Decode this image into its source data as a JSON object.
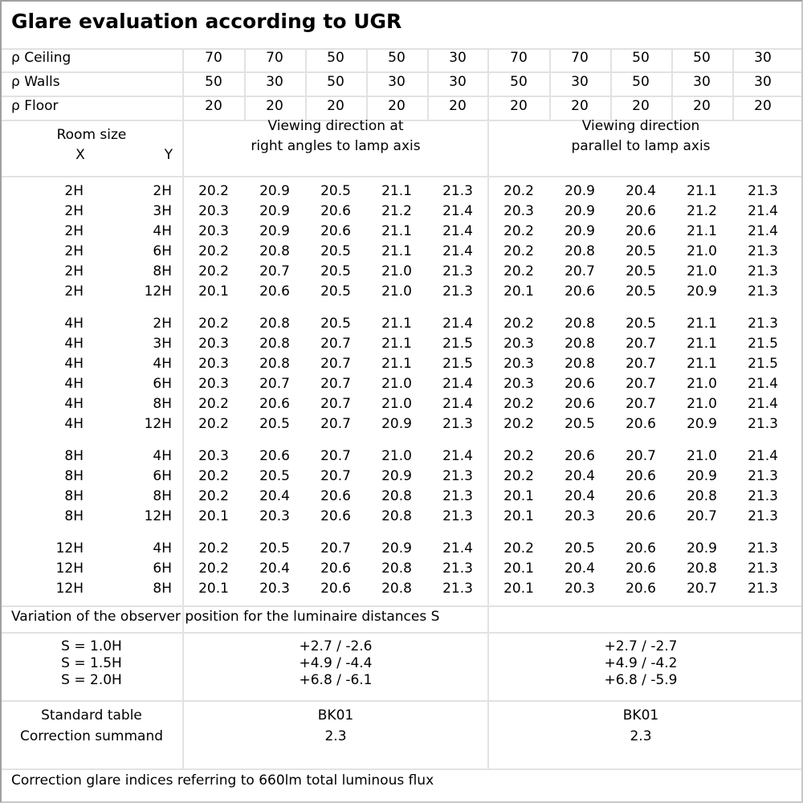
{
  "title": "Glare evaluation according to UGR",
  "reflectances": [
    {
      "label": "ρ Ceiling",
      "values": [
        "70",
        "70",
        "50",
        "50",
        "30",
        "70",
        "70",
        "50",
        "50",
        "30"
      ]
    },
    {
      "label": "ρ Walls",
      "values": [
        "50",
        "30",
        "50",
        "30",
        "30",
        "50",
        "30",
        "50",
        "30",
        "30"
      ]
    },
    {
      "label": "ρ Floor",
      "values": [
        "20",
        "20",
        "20",
        "20",
        "20",
        "20",
        "20",
        "20",
        "20",
        "20"
      ]
    }
  ],
  "header": {
    "room_size": "Room size",
    "x": "X",
    "y": "Y",
    "crosswise_1": "Viewing direction at",
    "crosswise_2": "right angles to lamp axis",
    "endwise_1": "Viewing direction",
    "endwise_2": "parallel to lamp axis"
  },
  "groups": [
    [
      {
        "x": "2H",
        "y": "2H",
        "v": [
          "20.2",
          "20.9",
          "20.5",
          "21.1",
          "21.3",
          "20.2",
          "20.9",
          "20.4",
          "21.1",
          "21.3"
        ]
      },
      {
        "x": "2H",
        "y": "3H",
        "v": [
          "20.3",
          "20.9",
          "20.6",
          "21.2",
          "21.4",
          "20.3",
          "20.9",
          "20.6",
          "21.2",
          "21.4"
        ]
      },
      {
        "x": "2H",
        "y": "4H",
        "v": [
          "20.3",
          "20.9",
          "20.6",
          "21.1",
          "21.4",
          "20.2",
          "20.9",
          "20.6",
          "21.1",
          "21.4"
        ]
      },
      {
        "x": "2H",
        "y": "6H",
        "v": [
          "20.2",
          "20.8",
          "20.5",
          "21.1",
          "21.4",
          "20.2",
          "20.8",
          "20.5",
          "21.0",
          "21.3"
        ]
      },
      {
        "x": "2H",
        "y": "8H",
        "v": [
          "20.2",
          "20.7",
          "20.5",
          "21.0",
          "21.3",
          "20.2",
          "20.7",
          "20.5",
          "21.0",
          "21.3"
        ]
      },
      {
        "x": "2H",
        "y": "12H",
        "v": [
          "20.1",
          "20.6",
          "20.5",
          "21.0",
          "21.3",
          "20.1",
          "20.6",
          "20.5",
          "20.9",
          "21.3"
        ]
      }
    ],
    [
      {
        "x": "4H",
        "y": "2H",
        "v": [
          "20.2",
          "20.8",
          "20.5",
          "21.1",
          "21.4",
          "20.2",
          "20.8",
          "20.5",
          "21.1",
          "21.3"
        ]
      },
      {
        "x": "4H",
        "y": "3H",
        "v": [
          "20.3",
          "20.8",
          "20.7",
          "21.1",
          "21.5",
          "20.3",
          "20.8",
          "20.7",
          "21.1",
          "21.5"
        ]
      },
      {
        "x": "4H",
        "y": "4H",
        "v": [
          "20.3",
          "20.8",
          "20.7",
          "21.1",
          "21.5",
          "20.3",
          "20.8",
          "20.7",
          "21.1",
          "21.5"
        ]
      },
      {
        "x": "4H",
        "y": "6H",
        "v": [
          "20.3",
          "20.7",
          "20.7",
          "21.0",
          "21.4",
          "20.3",
          "20.6",
          "20.7",
          "21.0",
          "21.4"
        ]
      },
      {
        "x": "4H",
        "y": "8H",
        "v": [
          "20.2",
          "20.6",
          "20.7",
          "21.0",
          "21.4",
          "20.2",
          "20.6",
          "20.7",
          "21.0",
          "21.4"
        ]
      },
      {
        "x": "4H",
        "y": "12H",
        "v": [
          "20.2",
          "20.5",
          "20.7",
          "20.9",
          "21.3",
          "20.2",
          "20.5",
          "20.6",
          "20.9",
          "21.3"
        ]
      }
    ],
    [
      {
        "x": "8H",
        "y": "4H",
        "v": [
          "20.3",
          "20.6",
          "20.7",
          "21.0",
          "21.4",
          "20.2",
          "20.6",
          "20.7",
          "21.0",
          "21.4"
        ]
      },
      {
        "x": "8H",
        "y": "6H",
        "v": [
          "20.2",
          "20.5",
          "20.7",
          "20.9",
          "21.3",
          "20.2",
          "20.4",
          "20.6",
          "20.9",
          "21.3"
        ]
      },
      {
        "x": "8H",
        "y": "8H",
        "v": [
          "20.2",
          "20.4",
          "20.6",
          "20.8",
          "21.3",
          "20.1",
          "20.4",
          "20.6",
          "20.8",
          "21.3"
        ]
      },
      {
        "x": "8H",
        "y": "12H",
        "v": [
          "20.1",
          "20.3",
          "20.6",
          "20.8",
          "21.3",
          "20.1",
          "20.3",
          "20.6",
          "20.7",
          "21.3"
        ]
      }
    ],
    [
      {
        "x": "12H",
        "y": "4H",
        "v": [
          "20.2",
          "20.5",
          "20.7",
          "20.9",
          "21.4",
          "20.2",
          "20.5",
          "20.6",
          "20.9",
          "21.3"
        ]
      },
      {
        "x": "12H",
        "y": "6H",
        "v": [
          "20.2",
          "20.4",
          "20.6",
          "20.8",
          "21.3",
          "20.1",
          "20.4",
          "20.6",
          "20.8",
          "21.3"
        ]
      },
      {
        "x": "12H",
        "y": "8H",
        "v": [
          "20.1",
          "20.3",
          "20.6",
          "20.8",
          "21.3",
          "20.1",
          "20.3",
          "20.6",
          "20.7",
          "21.3"
        ]
      }
    ]
  ],
  "variation": {
    "label": "Variation of the observer position for the luminaire distances S",
    "rows": [
      {
        "s": "S = 1.0H",
        "crosswise": "+2.7 / -2.6",
        "endwise": "+2.7 / -2.7"
      },
      {
        "s": "S = 1.5H",
        "crosswise": "+4.9 / -4.4",
        "endwise": "+4.9 / -4.2"
      },
      {
        "s": "S = 2.0H",
        "crosswise": "+6.8 / -6.1",
        "endwise": "+6.8 / -5.9"
      }
    ]
  },
  "standard": {
    "label_table": "Standard table",
    "label_correction": "Correction summand",
    "crosswise_table": "BK01",
    "crosswise_correction": "2.3",
    "endwise_table": "BK01",
    "endwise_correction": "2.3"
  },
  "footer": "Correction glare indices referring to 660lm total luminous flux"
}
